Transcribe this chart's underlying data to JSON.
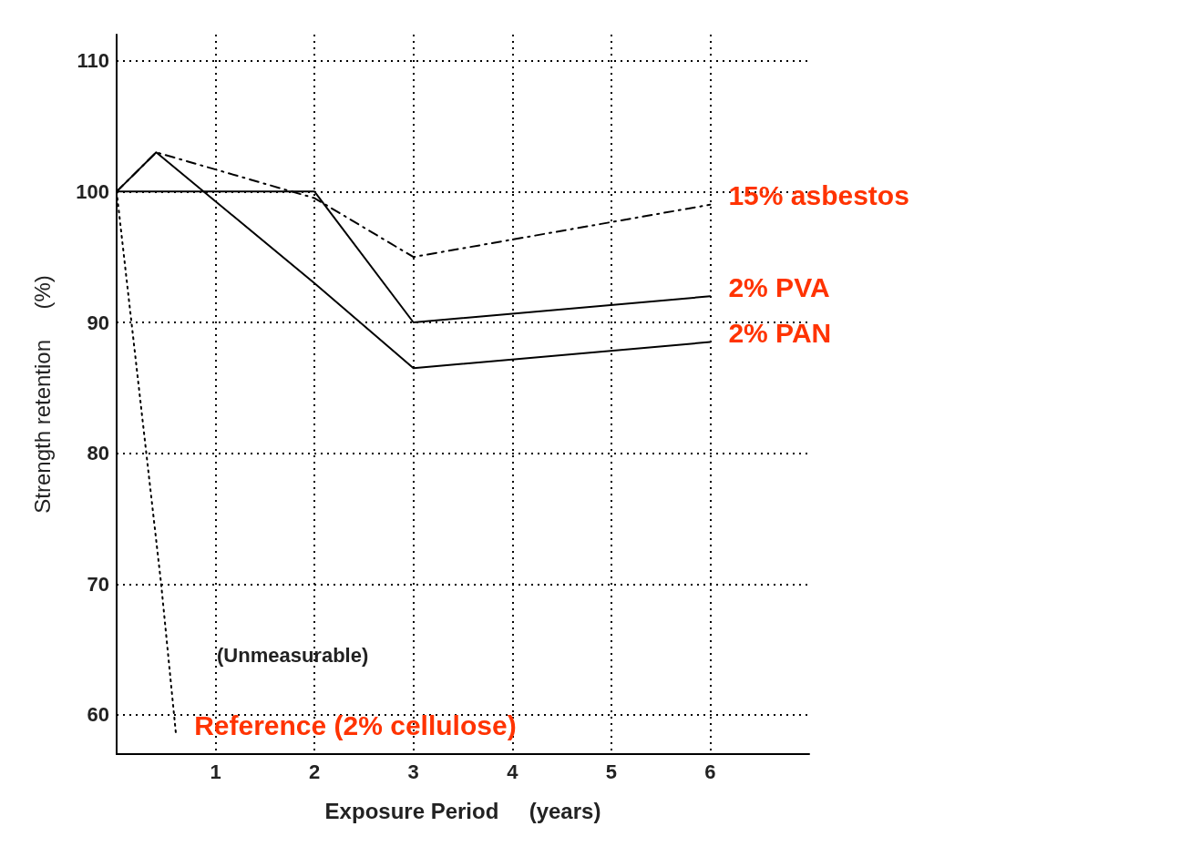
{
  "chart_data": {
    "type": "line",
    "xlabel": "Exposure Period     (years)",
    "ylabel": "Strength retention     (%)",
    "xlim": [
      0,
      7
    ],
    "xticks": [
      1,
      2,
      3,
      4,
      5,
      6
    ],
    "ylim": [
      57,
      112
    ],
    "yticks": [
      60,
      70,
      80,
      90,
      100,
      110
    ],
    "grid": true,
    "legend": false,
    "marker": "none",
    "series": [
      {
        "name": "15% asbestos",
        "color": "#000000",
        "line_style": "dashed",
        "x": [
          0,
          0.4,
          2,
          3,
          6
        ],
        "values": [
          100,
          103,
          99.5,
          95,
          99
        ]
      },
      {
        "name": "2% PVA",
        "color": "#000000",
        "line_style": "solid",
        "x": [
          0,
          2,
          3,
          6
        ],
        "values": [
          100,
          100,
          90,
          92
        ]
      },
      {
        "name": "2% PAN",
        "color": "#000000",
        "line_style": "solid",
        "x": [
          0,
          0.4,
          2,
          3,
          6
        ],
        "values": [
          100,
          103,
          93,
          86.5,
          88.5
        ]
      },
      {
        "name": "Reference (2% cellulose)",
        "color": "#000000",
        "line_style": "dotted",
        "x": [
          0,
          0.45,
          0.6
        ],
        "values": [
          100,
          70,
          58.5
        ]
      }
    ],
    "annotations": [
      "(Unmeasurable)"
    ]
  }
}
